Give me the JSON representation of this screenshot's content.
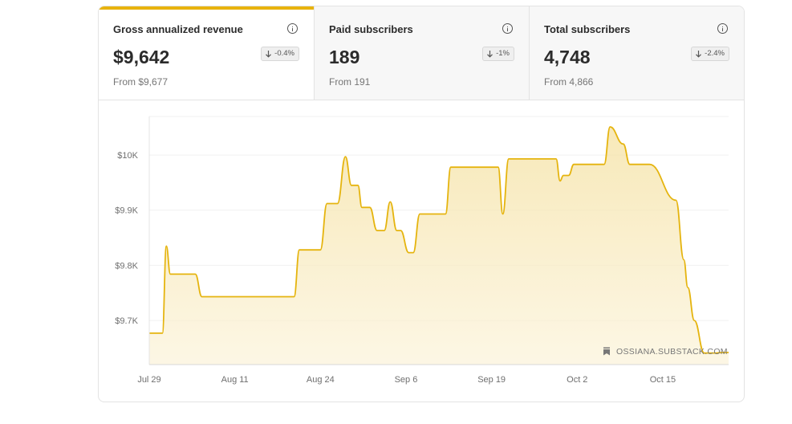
{
  "stats": [
    {
      "title": "Gross annualized revenue",
      "value": "$9,642",
      "change": "-0.4%",
      "from": "From $9,677",
      "selected": true,
      "info_icon": "info-circle-icon",
      "arrow_icon": "arrow-down-icon"
    },
    {
      "title": "Paid subscribers",
      "value": "189",
      "change": "-1%",
      "from": "From 191",
      "selected": false,
      "info_icon": "info-circle-icon",
      "arrow_icon": "arrow-down-icon"
    },
    {
      "title": "Total subscribers",
      "value": "4,748",
      "change": "-2.4%",
      "from": "From 4,866",
      "selected": false,
      "info_icon": "info-circle-icon",
      "arrow_icon": "arrow-down-icon"
    }
  ],
  "colors": {
    "accent": "#e8b30d",
    "line": "#e5b40e",
    "fill_top": "#f5e1a1",
    "fill_bottom": "#fbf3d9"
  },
  "watermark": {
    "icon": "bookmark-icon",
    "text": "OSSIANA.SUBSTACK.COM"
  },
  "chart_data": {
    "type": "area",
    "title": "",
    "xlabel": "",
    "ylabel": "",
    "x_ticks": [
      "Jul 29",
      "Aug 11",
      "Aug 24",
      "Sep 6",
      "Sep 19",
      "Oct 2",
      "Oct 15"
    ],
    "y_ticks": [
      "$9.7K",
      "$9.8K",
      "$9.9K",
      "$10K"
    ],
    "y_tick_values": [
      9700,
      9800,
      9900,
      10000
    ],
    "ylim": [
      9620,
      10070
    ],
    "xlim": [
      0,
      88
    ],
    "grid": "horizontal",
    "series": [
      {
        "x": [
          0,
          2,
          2.6,
          3.2,
          4.2,
          7,
          8,
          22,
          22.8,
          23.7,
          26,
          27,
          28.6,
          29.8,
          30.7,
          31.7,
          32.3,
          33.5,
          34.6,
          35.7,
          36.6,
          37.6,
          38.2,
          39.4,
          40.1,
          41.1,
          41.9,
          45,
          45.8,
          53,
          53.7,
          54.6,
          55.5,
          61.8,
          62.4,
          62.9,
          63.7,
          64.5,
          68,
          69.1,
          70,
          72,
          73,
          76,
          80,
          81.2,
          81.8,
          82.8,
          84.3,
          85,
          86.1,
          87,
          88
        ],
        "values": [
          9677,
          9677,
          9835,
          9784,
          9784,
          9784,
          9743,
          9743,
          9828,
          9828,
          9828,
          9912,
          9912,
          9997,
          9945,
          9945,
          9905,
          9905,
          9863,
          9863,
          9915,
          9863,
          9863,
          9823,
          9823,
          9893,
          9893,
          9893,
          9978,
          9978,
          9893,
          9993,
          9993,
          9993,
          9953,
          9963,
          9963,
          9983,
          9983,
          9983,
          10051,
          10020,
          9983,
          9983,
          9918,
          9810,
          9760,
          9700,
          9641,
          9641,
          9641,
          9642,
          9642
        ]
      }
    ]
  }
}
